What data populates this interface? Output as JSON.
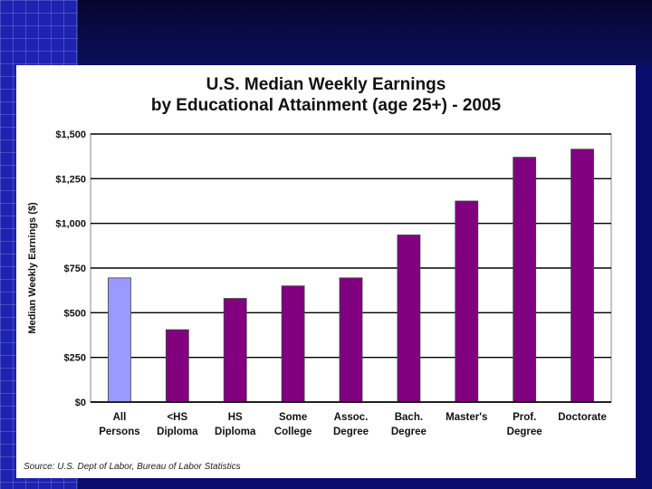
{
  "chart_data": {
    "type": "bar",
    "title_line1": "U.S. Median Weekly Earnings",
    "title_line2": "by Educational Attainment (age 25+) - 2005",
    "ylabel": "Median Weekly Earnings ($)",
    "xlabel": "",
    "ylim": [
      0,
      1500
    ],
    "yticks": [
      0,
      250,
      500,
      750,
      1000,
      1250,
      1500
    ],
    "ytick_labels": [
      "$0",
      "$250",
      "$500",
      "$750",
      "$1,000",
      "$1,250",
      "$1,500"
    ],
    "grid": "horizontal",
    "categories": [
      [
        "All",
        "Persons"
      ],
      [
        "<HS",
        "Diploma"
      ],
      [
        "HS",
        "Diploma"
      ],
      [
        "Some",
        "College"
      ],
      [
        "Assoc.",
        "Degree"
      ],
      [
        "Bach.",
        "Degree"
      ],
      [
        "Master's"
      ],
      [
        "Prof.",
        "Degree"
      ],
      [
        "Doctorate"
      ]
    ],
    "values": [
      695,
      405,
      580,
      650,
      695,
      935,
      1125,
      1370,
      1415
    ],
    "colors": [
      "#9999ff",
      "#800080",
      "#800080",
      "#800080",
      "#800080",
      "#800080",
      "#800080",
      "#800080",
      "#800080"
    ],
    "source": "Source: U.S. Dept of Labor, Bureau of Labor Statistics"
  }
}
